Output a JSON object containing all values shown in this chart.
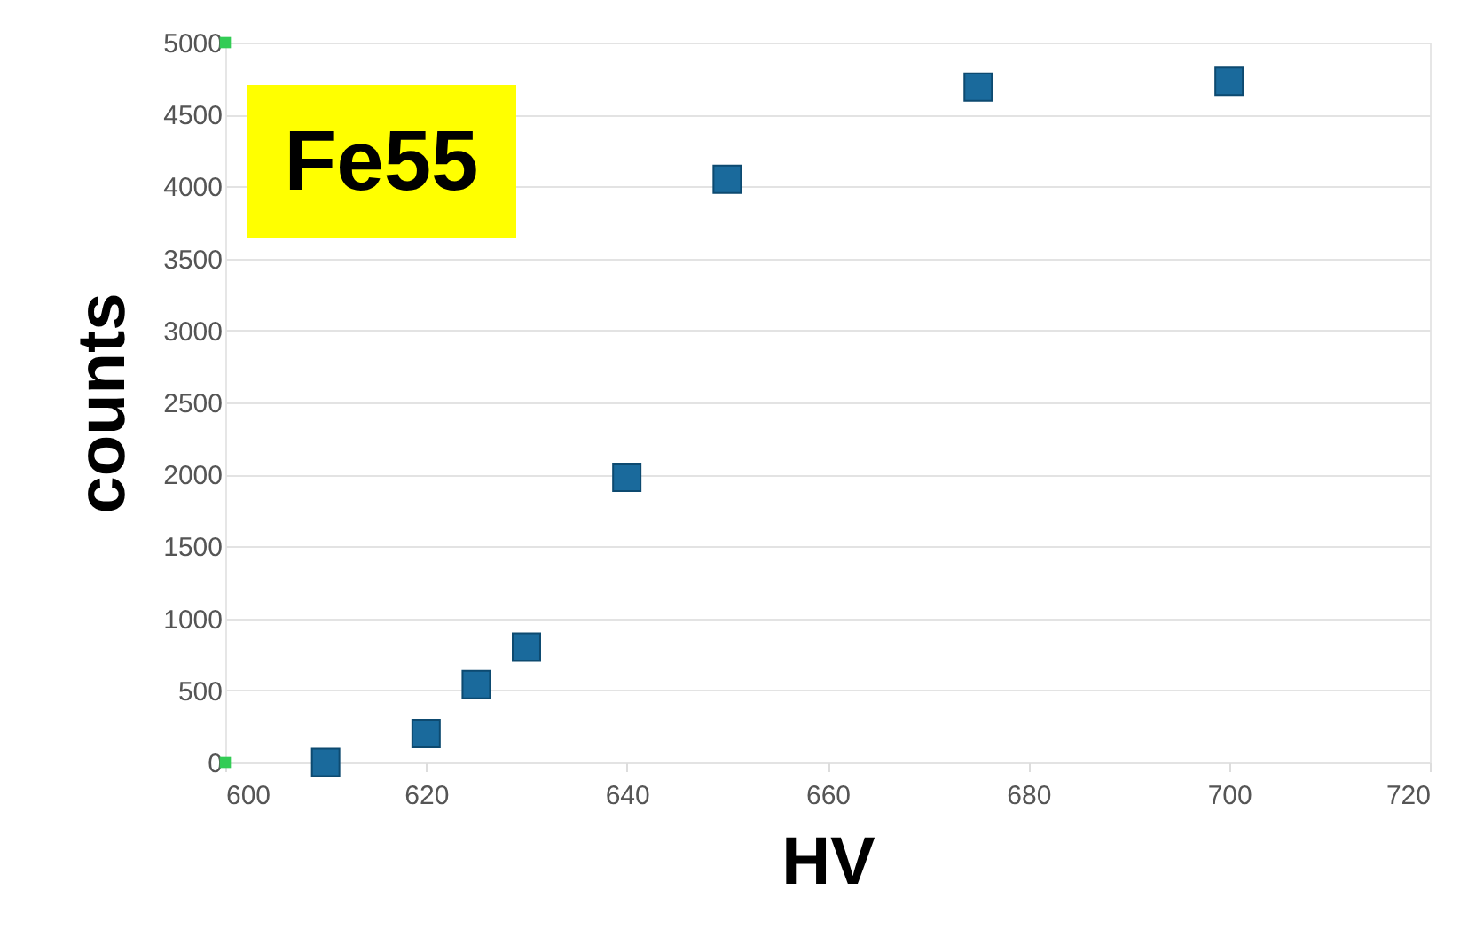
{
  "chart_data": {
    "type": "scatter",
    "xlabel": "HV",
    "ylabel": "counts",
    "annotations": [
      "Fe55"
    ],
    "xlim": [
      600,
      720
    ],
    "xticks": [
      600,
      620,
      640,
      660,
      680,
      700,
      720
    ],
    "ylim": [
      0,
      5000
    ],
    "yticks": [
      0,
      500,
      1000,
      1500,
      2000,
      2500,
      3000,
      3500,
      4000,
      4500,
      5000
    ],
    "grid": "y",
    "marker": "square",
    "series": [
      {
        "color": "#1a6a9c",
        "x": [
          610,
          620,
          625,
          630,
          640,
          650,
          675,
          700
        ],
        "values": [
          0,
          200,
          540,
          800,
          1980,
          4050,
          4690,
          4730
        ]
      },
      {
        "color": "#33cc55",
        "x": [
          600,
          600
        ],
        "values": [
          5000,
          0
        ]
      }
    ]
  }
}
